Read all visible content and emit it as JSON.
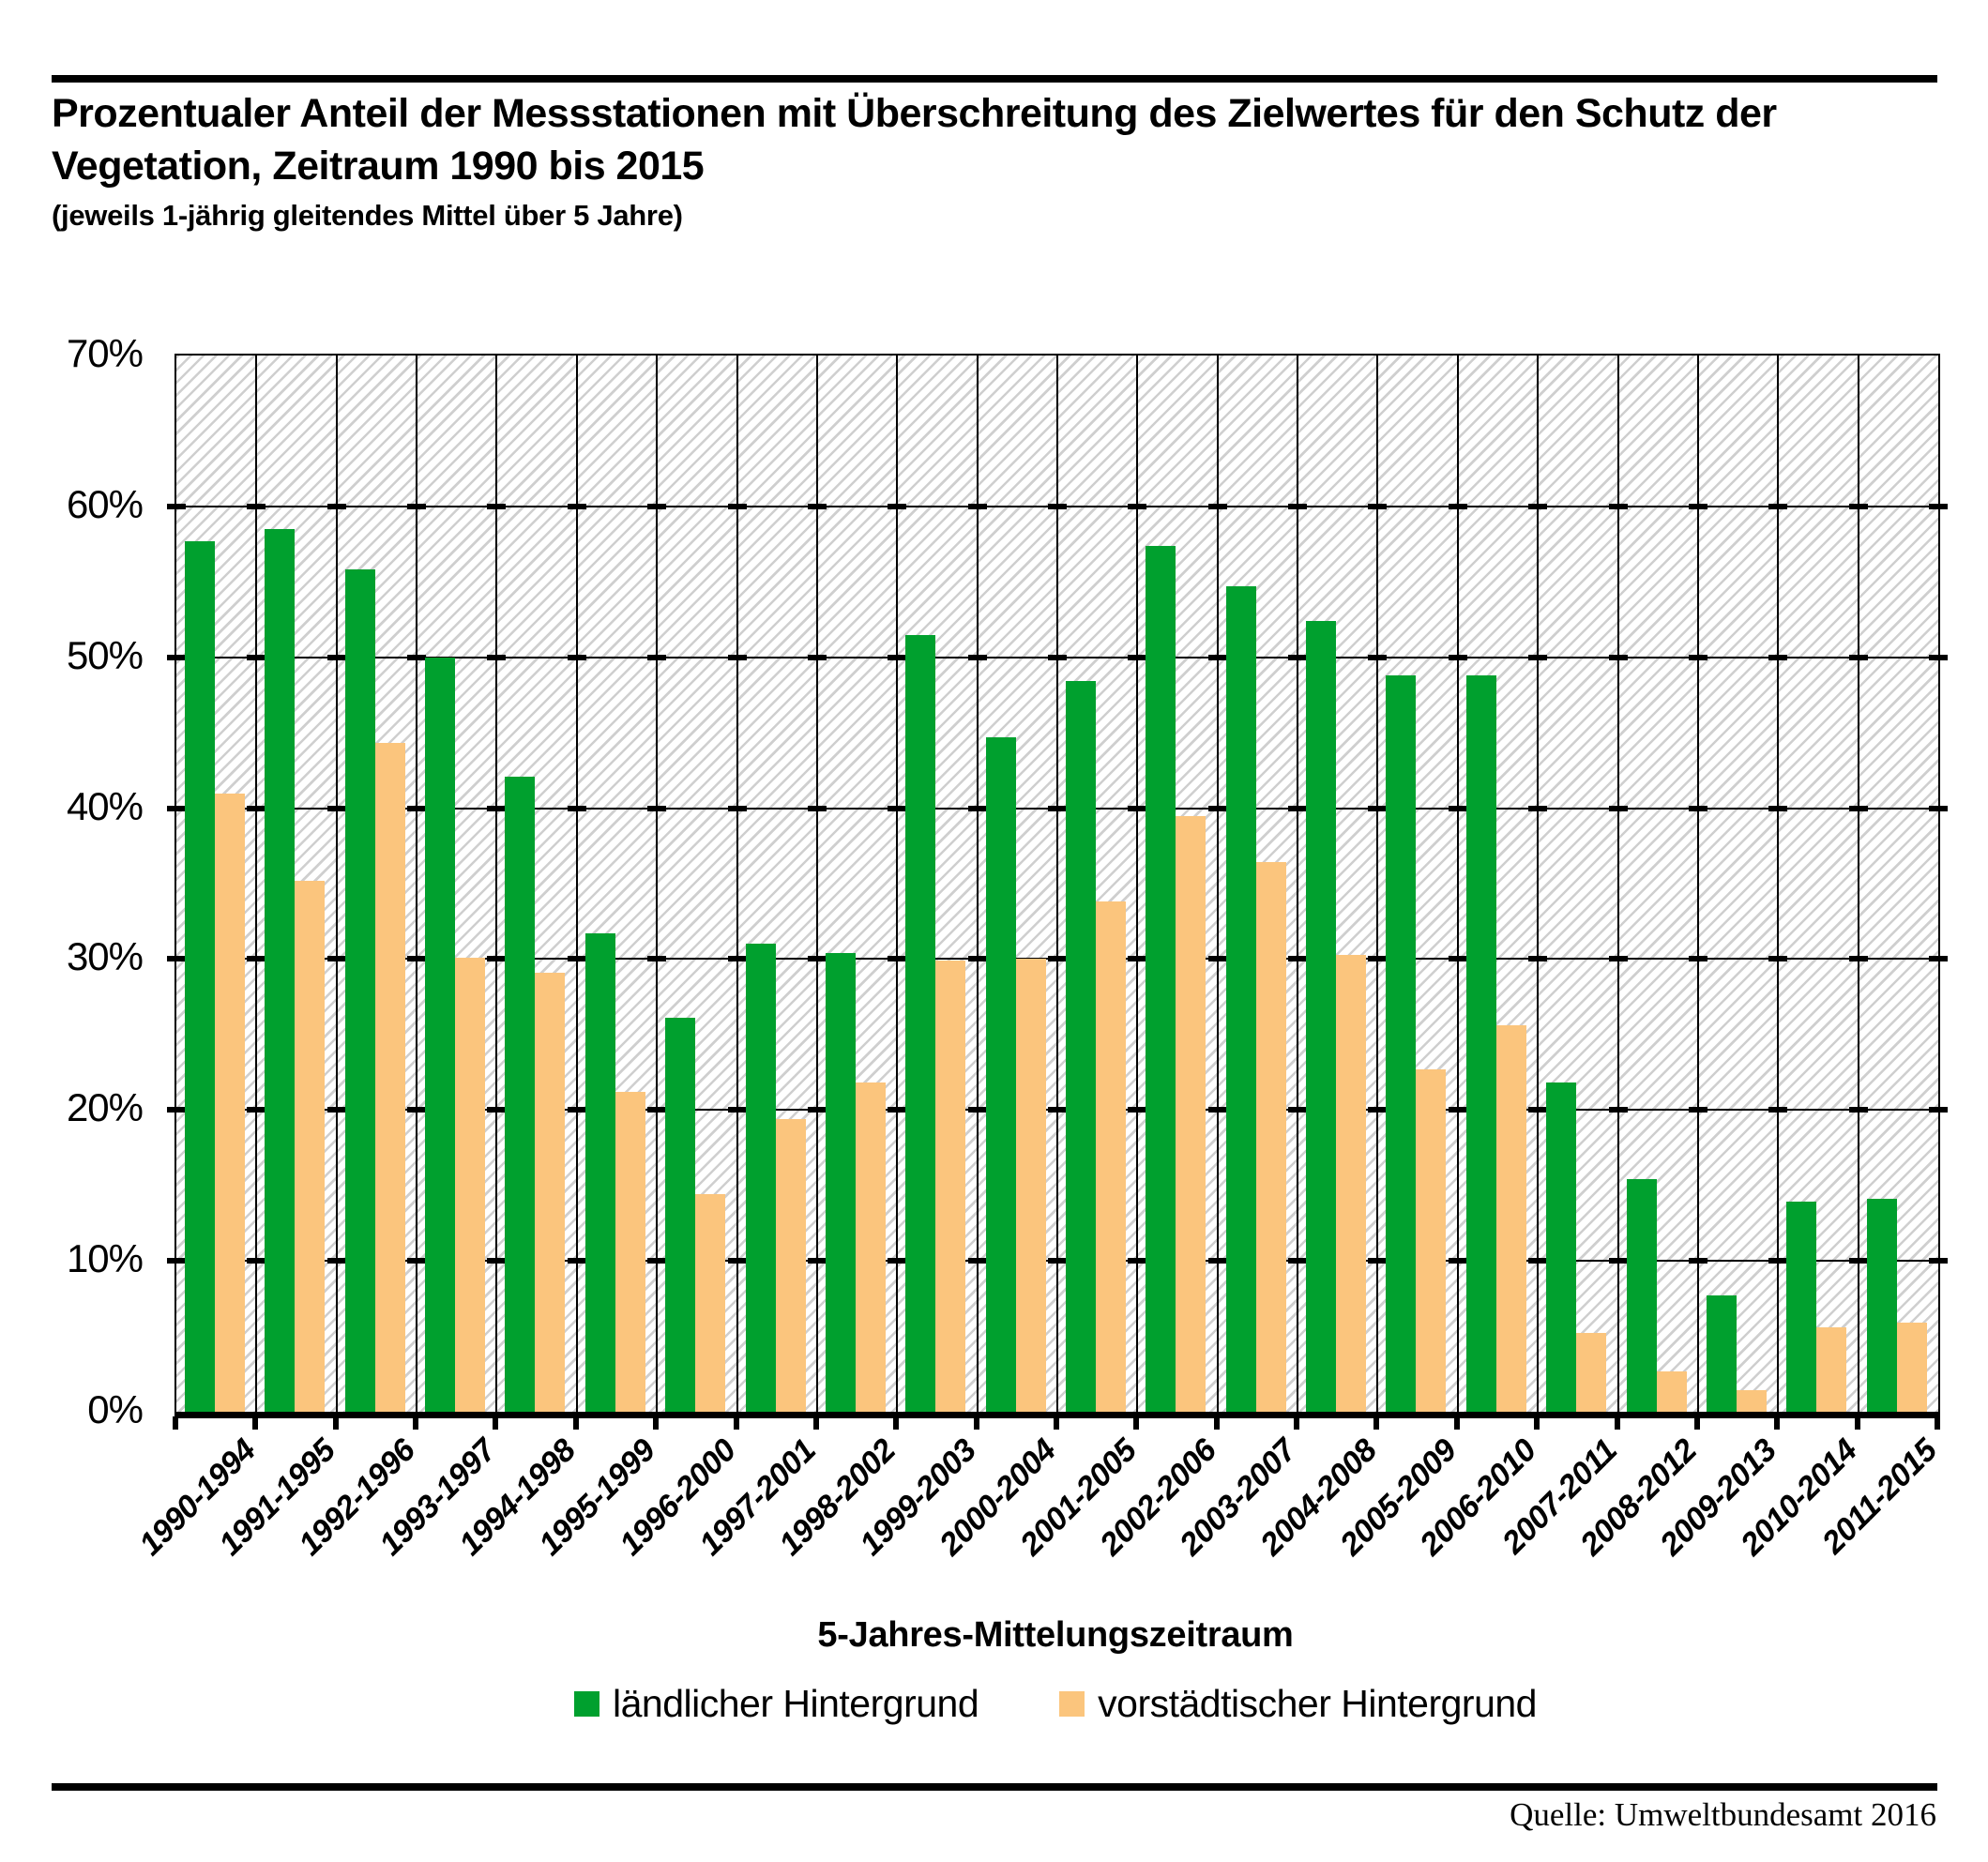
{
  "header": {
    "title": "Prozentualer Anteil der Messstationen mit Überschreitung des Zielwertes für den Schutz der Vegetation, Zeitraum 1990 bis 2015",
    "subtitle": "(jeweils 1-jährig gleitendes Mittel über 5 Jahre)"
  },
  "source": "Quelle: Umweltbundesamt 2016",
  "colors": {
    "rural_green": "#00A02E",
    "suburban_orange": "#FBC57D",
    "hatch_gray": "#CFCFCF",
    "axis_black": "#000000"
  },
  "chart_data": {
    "type": "bar",
    "title": "Prozentualer Anteil der Messstationen mit Überschreitung des Zielwertes für den Schutz der Vegetation, Zeitraum 1990 bis 2015",
    "subtitle": "(jeweils 1-jährig gleitendes Mittel über 5 Jahre)",
    "xlabel": "5-Jahres-Mittelungszeitraum",
    "ylabel": "",
    "ylim": [
      0,
      70
    ],
    "ytick_step": 10,
    "ytick_labels": [
      "0%",
      "10%",
      "20%",
      "30%",
      "40%",
      "50%",
      "60%",
      "70%"
    ],
    "grid": true,
    "hatched_background": true,
    "legend_position": "bottom",
    "categories": [
      "1990-1994",
      "1991-1995",
      "1992-1996",
      "1993-1997",
      "1994-1998",
      "1995-1999",
      "1996-2000",
      "1997-2001",
      "1998-2002",
      "1999-2003",
      "2000-2004",
      "2001-2005",
      "2002-2006",
      "2003-2007",
      "2004-2008",
      "2005-2009",
      "2006-2010",
      "2007-2011",
      "2008-2012",
      "2009-2013",
      "2010-2014",
      "2011-2015"
    ],
    "series": [
      {
        "name": "ländlicher Hintergrund",
        "color": "#00A02E",
        "values": [
          57.7,
          58.5,
          55.8,
          50.0,
          42.1,
          31.7,
          26.1,
          31.0,
          30.4,
          51.5,
          44.7,
          48.4,
          57.4,
          54.7,
          52.4,
          48.8,
          48.8,
          21.8,
          15.4,
          7.7,
          13.9,
          14.1
        ]
      },
      {
        "name": "vorstädtischer Hintergrund",
        "color": "#FBC57D",
        "values": [
          41.0,
          35.2,
          44.3,
          30.1,
          29.1,
          21.2,
          14.4,
          19.4,
          21.8,
          29.9,
          30.0,
          33.8,
          39.5,
          36.4,
          30.3,
          22.7,
          25.6,
          5.2,
          2.7,
          1.4,
          5.6,
          5.9
        ]
      }
    ]
  }
}
